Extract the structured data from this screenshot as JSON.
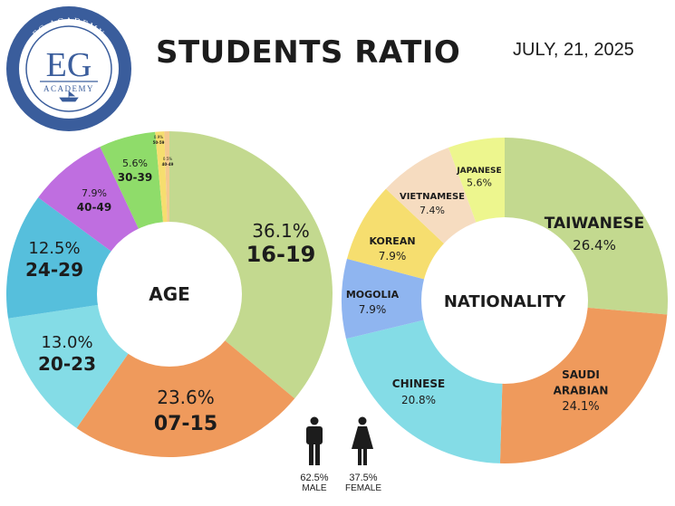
{
  "header": {
    "title": "STUDENTS RATIO",
    "date": "JULY, 21, 2025"
  },
  "logo": {
    "top_text": "EG ACADEMY",
    "initials": "EG",
    "sub_text": "ACADEMY",
    "ring_text": "EDUCATION GROUP GRAMMA INC",
    "color": "#3a5d9c"
  },
  "chart_data": [
    {
      "type": "pie",
      "title": "",
      "center_label": "AGE",
      "categories": [
        "16-19",
        "07-15",
        "20-23",
        "24-29",
        "40-49",
        "30-39",
        "50-59",
        "40-49"
      ],
      "values": [
        36.1,
        23.6,
        13.0,
        12.5,
        7.9,
        5.6,
        0.9,
        0.5
      ],
      "value_labels": [
        "36.1%",
        "23.6%",
        "13.0%",
        "12.5%",
        "7.9%",
        "5.6%",
        "0.9%",
        "0.5%"
      ],
      "colors": [
        "#c3d98f",
        "#ef9a5c",
        "#84dce6",
        "#56bfdc",
        "#bf6ee0",
        "#8fdc6a",
        "#f6de6f",
        "#f4c98e"
      ]
    },
    {
      "type": "pie",
      "title": "",
      "center_label": "NATIONALITY",
      "categories": [
        "TAIWANESE",
        "SAUDI ARABIAN",
        "CHINESE",
        "MOGOLIA",
        "KOREAN",
        "VIETNAMESE",
        "JAPANESE"
      ],
      "values": [
        26.4,
        24.1,
        20.8,
        7.9,
        7.9,
        7.4,
        5.6
      ],
      "value_labels": [
        "26.4%",
        "24.1%",
        "20.8%",
        "7.9%",
        "7.9%",
        "7.4%",
        "5.6%"
      ],
      "colors": [
        "#c3d98f",
        "#ef9a5c",
        "#84dce6",
        "#8fb5f0",
        "#f6de6f",
        "#f6dcc0",
        "#edf68e"
      ]
    }
  ],
  "gender": [
    {
      "value": "62.5%",
      "label": "MALE",
      "icon": "male-person-icon"
    },
    {
      "value": "37.5%",
      "label": "FEMALE",
      "icon": "female-person-icon"
    }
  ]
}
